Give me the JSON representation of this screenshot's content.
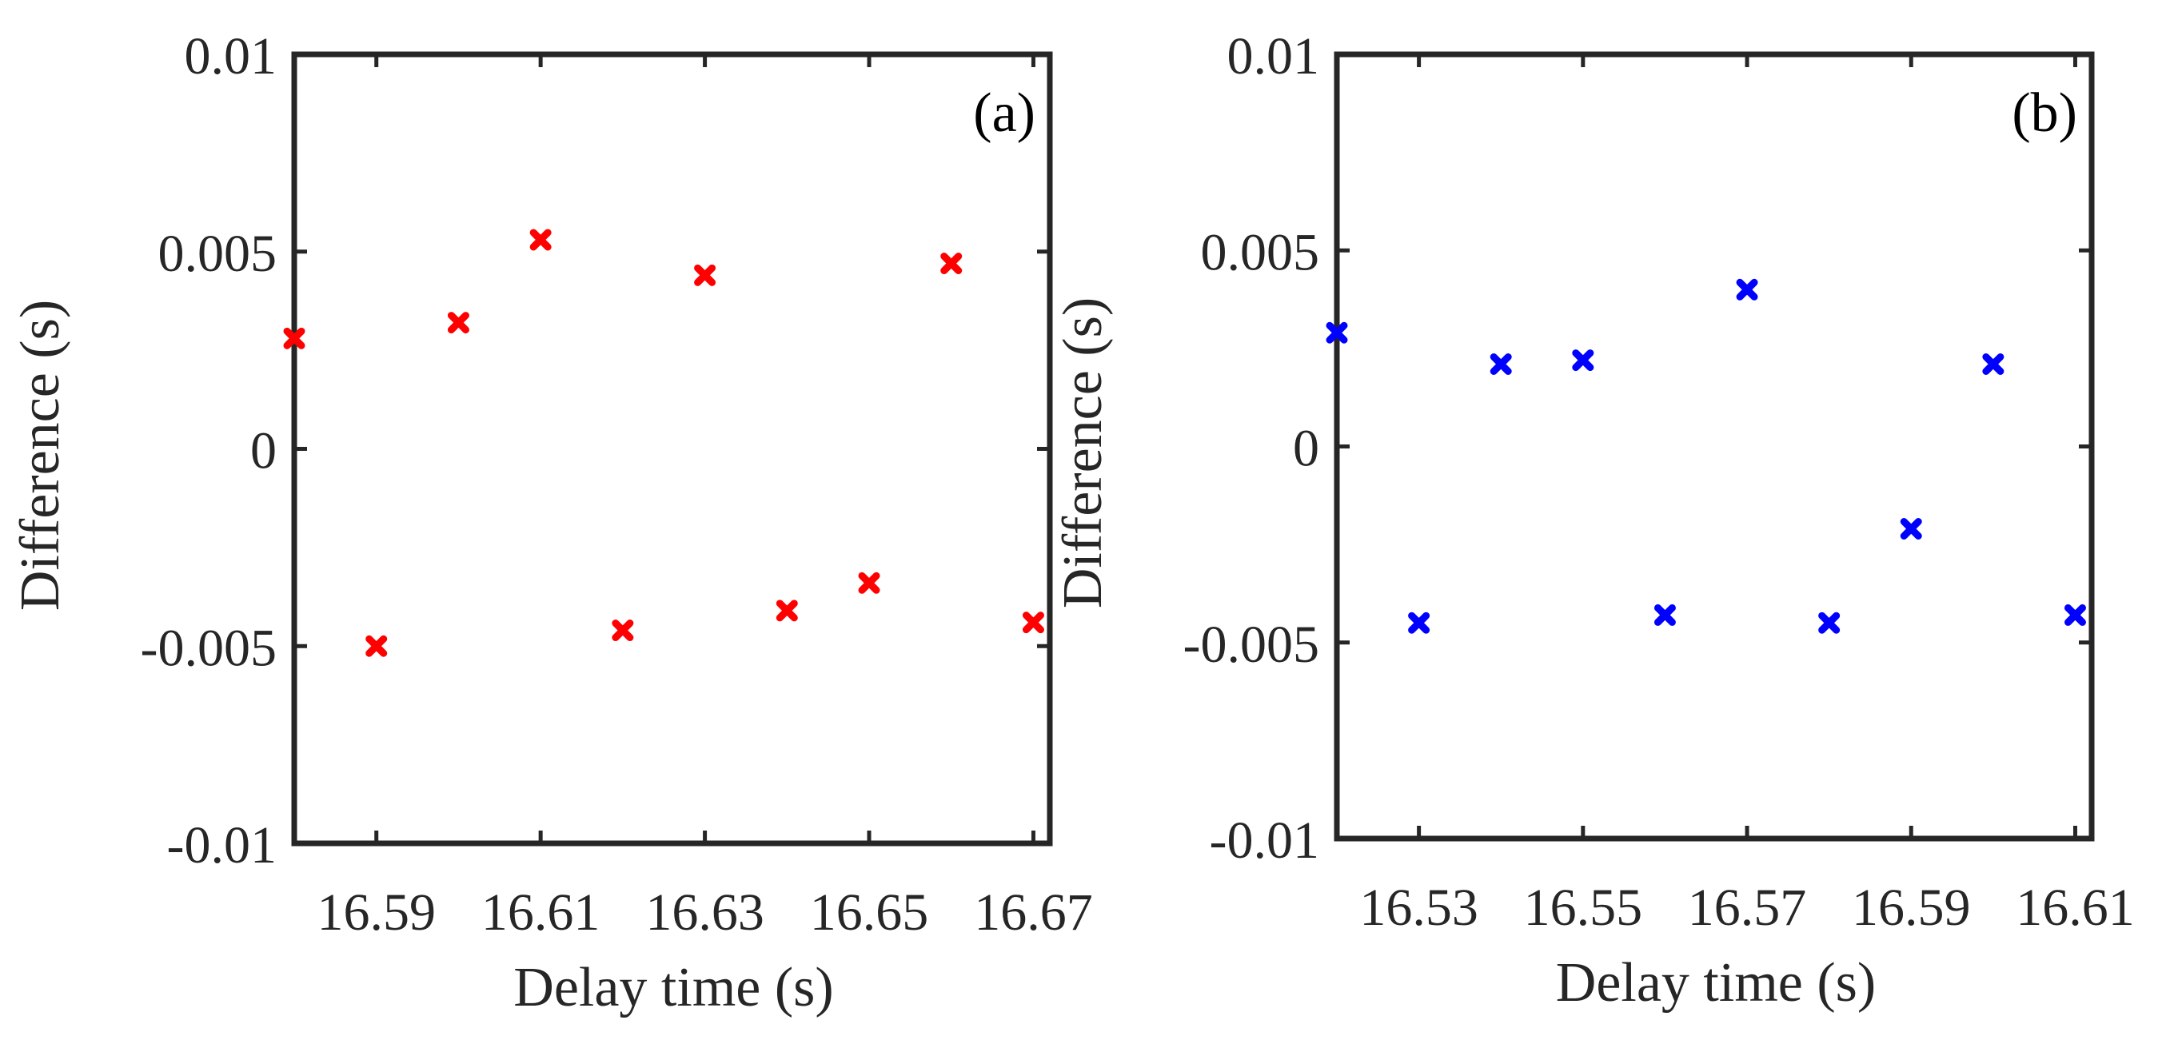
{
  "chart_data": [
    {
      "type": "scatter",
      "panel_label": "(a)",
      "xlabel": "Delay time (s)",
      "ylabel": "Difference (s)",
      "xlim": [
        16.58,
        16.672
      ],
      "ylim": [
        -0.01,
        0.01
      ],
      "xticks": [
        16.59,
        16.61,
        16.63,
        16.65,
        16.67
      ],
      "xtick_labels": [
        "16.59",
        "16.61",
        "16.63",
        "16.65",
        "16.67"
      ],
      "yticks": [
        0.01,
        0.005,
        0,
        -0.005,
        -0.01
      ],
      "ytick_labels": [
        "0.01",
        "0.005",
        "0",
        "-0.005",
        "-0.01"
      ],
      "marker": "x",
      "color": "#ff0000",
      "series": [
        {
          "name": "Difference",
          "x": [
            16.58,
            16.59,
            16.6,
            16.61,
            16.62,
            16.63,
            16.64,
            16.65,
            16.66,
            16.67
          ],
          "y": [
            0.0028,
            -0.005,
            0.0032,
            0.0053,
            -0.0046,
            0.0044,
            -0.0041,
            -0.0034,
            0.0047,
            -0.0044
          ]
        }
      ]
    },
    {
      "type": "scatter",
      "panel_label": "(b)",
      "xlabel": "Delay time (s)",
      "ylabel": "Difference (s)",
      "xlim": [
        16.52,
        16.612
      ],
      "ylim": [
        -0.01,
        0.01
      ],
      "xticks": [
        16.53,
        16.55,
        16.57,
        16.59,
        16.61
      ],
      "xtick_labels": [
        "16.53",
        "16.55",
        "16.57",
        "16.59",
        "16.61"
      ],
      "yticks": [
        0.01,
        0.005,
        0,
        -0.005,
        -0.01
      ],
      "ytick_labels": [
        "0.01",
        "0.005",
        "0",
        "-0.005",
        "-0.01"
      ],
      "marker": "x",
      "color": "#0000ff",
      "series": [
        {
          "name": "Difference",
          "x": [
            16.52,
            16.53,
            16.54,
            16.55,
            16.56,
            16.57,
            16.58,
            16.59,
            16.6,
            16.61
          ],
          "y": [
            0.0029,
            -0.0045,
            0.0021,
            0.0022,
            -0.0043,
            0.004,
            -0.0045,
            -0.0021,
            0.0021,
            -0.0043
          ]
        }
      ]
    }
  ]
}
